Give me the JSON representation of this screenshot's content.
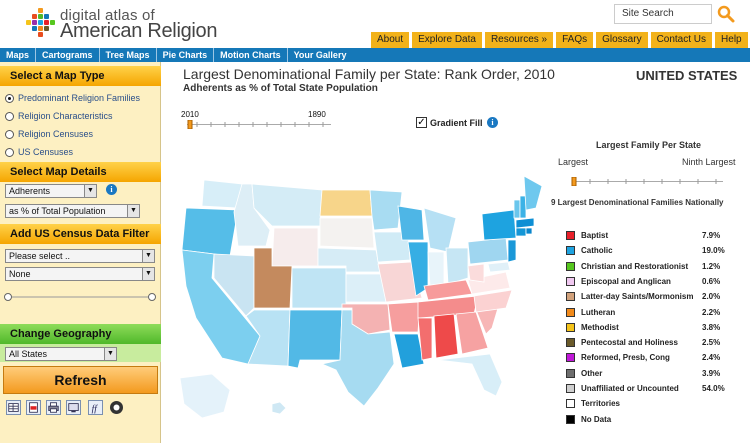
{
  "header": {
    "logo_line1": "digital atlas of",
    "logo_line2": "American Religion",
    "site_search_placeholder": "Site Search"
  },
  "orange_menu": [
    "About",
    "Explore Data",
    "Resources »",
    "FAQs",
    "Glossary",
    "Contact Us",
    "Help"
  ],
  "blue_nav": [
    "Maps",
    "Cartograms",
    "Tree Maps",
    "Pie Charts",
    "Motion Charts",
    "Your Gallery"
  ],
  "sidebar": {
    "map_type_header": "Select a Map Type",
    "map_types": [
      {
        "label": "Predominant Religion Families",
        "selected": true
      },
      {
        "label": "Religion Characteristics",
        "selected": false
      },
      {
        "label": "Religion Censuses",
        "selected": false
      },
      {
        "label": "US Censuses",
        "selected": false
      }
    ],
    "map_details_header": "Select Map Details",
    "measure_select": "Adherents",
    "unit_select": "as % of Total Population",
    "census_filter_header": "Add US Census Data Filter",
    "census_select": "Please select ..",
    "census_sub_select": "None",
    "geography_header": "Change Geography",
    "geography_select": "All States",
    "refresh_label": "Refresh"
  },
  "main": {
    "title": "Largest Denominational Family per State: Rank Order, 2010",
    "subtitle": "Adherents as % of Total State Population",
    "region": "UNITED STATES",
    "year_start": "2010",
    "year_end": "1890",
    "gradient_fill_label": "Gradient Fill",
    "gradient_fill_checked": true
  },
  "legend_panel": {
    "title": "Largest Family Per State",
    "slider_left_label": "Largest",
    "slider_right_label": "Ninth Largest",
    "legend_title": "9 Largest Denominational Families Nationally",
    "items": [
      {
        "name": "Baptist",
        "pct": "7.9%",
        "color": "#e8202a"
      },
      {
        "name": "Catholic",
        "pct": "19.0%",
        "color": "#1ea3e0"
      },
      {
        "name": "Christian and Restorationist",
        "pct": "1.2%",
        "color": "#56c71e"
      },
      {
        "name": "Episcopal and Anglican",
        "pct": "0.6%",
        "color": "#f0c8f0"
      },
      {
        "name": "Latter-day Saints/Mormonism",
        "pct": "2.0%",
        "color": "#d2a27c"
      },
      {
        "name": "Lutheran",
        "pct": "2.2%",
        "color": "#f28a1a"
      },
      {
        "name": "Methodist",
        "pct": "3.8%",
        "color": "#f5c41a"
      },
      {
        "name": "Pentecostal and Holiness",
        "pct": "2.5%",
        "color": "#6a5a2a"
      },
      {
        "name": "Reformed, Presb, Cong",
        "pct": "2.4%",
        "color": "#c018d8"
      },
      {
        "name": "Other",
        "pct": "3.9%",
        "color": "#6e6e6e"
      },
      {
        "name": "Unaffiliated or Uncounted",
        "pct": "54.0%",
        "color": "#cfcfcf"
      },
      {
        "name": "Territories",
        "pct": "",
        "color": "#ffffff"
      },
      {
        "name": "No Data",
        "pct": "",
        "color": "#000000"
      }
    ]
  },
  "colors": {
    "nav_blue": "#1578b8",
    "menu_orange": "#f2b21a",
    "sidebar_bg": "#fdf0c2",
    "green_header": "#4fb82a"
  },
  "icons": [
    "search-icon",
    "info-icon",
    "check-icon",
    "table-icon",
    "pdf-icon",
    "print-icon",
    "embed-icon",
    "formula-icon",
    "settings-icon"
  ]
}
